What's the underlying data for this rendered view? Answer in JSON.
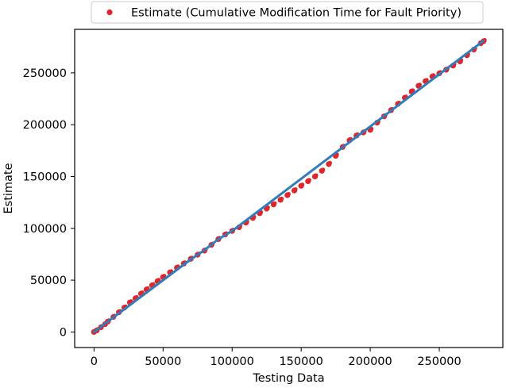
{
  "chart_data": {
    "type": "scatter",
    "title": "",
    "xlabel": "Testing Data",
    "ylabel": "Estimate",
    "xlim": [
      -14000,
      296000
    ],
    "ylim": [
      -15000,
      292000
    ],
    "x_ticks": [
      0,
      50000,
      100000,
      150000,
      200000,
      250000
    ],
    "y_ticks": [
      0,
      50000,
      100000,
      150000,
      200000,
      250000
    ],
    "grid": false,
    "legend_position": "top-center",
    "series": [
      {
        "name": "Estimate (Cumulative Modification Time for Fault Priority)",
        "kind": "scatter",
        "color": "#e0262a",
        "points": [
          [
            0,
            0
          ],
          [
            2000,
            1500
          ],
          [
            5000,
            4500
          ],
          [
            8000,
            7500
          ],
          [
            10000,
            10000
          ],
          [
            14000,
            14500
          ],
          [
            18000,
            19000
          ],
          [
            22000,
            23500
          ],
          [
            26000,
            28500
          ],
          [
            30000,
            32500
          ],
          [
            34000,
            37000
          ],
          [
            38000,
            41000
          ],
          [
            42000,
            45000
          ],
          [
            46000,
            49000
          ],
          [
            50000,
            53000
          ],
          [
            55000,
            57500
          ],
          [
            60000,
            62000
          ],
          [
            65000,
            66000
          ],
          [
            70000,
            70500
          ],
          [
            75000,
            74500
          ],
          [
            80000,
            78500
          ],
          [
            85000,
            84000
          ],
          [
            90000,
            89500
          ],
          [
            95000,
            94000
          ],
          [
            100000,
            97500
          ],
          [
            105000,
            101000
          ],
          [
            110000,
            105500
          ],
          [
            115000,
            110000
          ],
          [
            120000,
            114500
          ],
          [
            125000,
            119000
          ],
          [
            130000,
            123000
          ],
          [
            135000,
            127500
          ],
          [
            140000,
            132000
          ],
          [
            145000,
            136500
          ],
          [
            150000,
            141000
          ],
          [
            155000,
            145500
          ],
          [
            160000,
            150000
          ],
          [
            165000,
            155500
          ],
          [
            170000,
            162000
          ],
          [
            175000,
            170000
          ],
          [
            180000,
            178500
          ],
          [
            185000,
            185000
          ],
          [
            190000,
            189500
          ],
          [
            195000,
            192500
          ],
          [
            200000,
            195000
          ],
          [
            205000,
            202000
          ],
          [
            210000,
            208000
          ],
          [
            215000,
            214000
          ],
          [
            220000,
            220000
          ],
          [
            225000,
            226000
          ],
          [
            230000,
            232000
          ],
          [
            235000,
            237500
          ],
          [
            240000,
            242000
          ],
          [
            245000,
            246500
          ],
          [
            250000,
            249500
          ],
          [
            255000,
            253000
          ],
          [
            260000,
            257000
          ],
          [
            265000,
            261000
          ],
          [
            270000,
            267000
          ],
          [
            275000,
            272500
          ],
          [
            280000,
            278500
          ],
          [
            282000,
            280500
          ]
        ]
      },
      {
        "name": "",
        "kind": "line",
        "color": "#2f7dbc",
        "points": [
          [
            0,
            0
          ],
          [
            70000,
            70000
          ],
          [
            80000,
            79000
          ],
          [
            90000,
            89500
          ],
          [
            100000,
            97500
          ],
          [
            282000,
            281000
          ]
        ]
      }
    ]
  }
}
